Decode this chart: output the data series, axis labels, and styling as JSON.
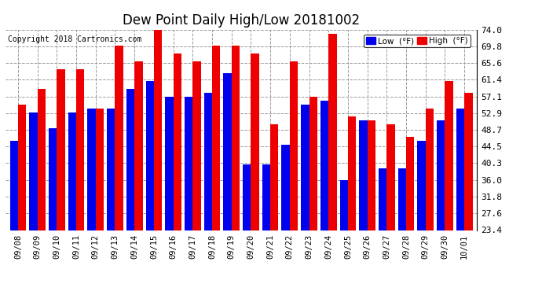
{
  "title": "Dew Point Daily High/Low 20181002",
  "copyright": "Copyright 2018 Cartronics.com",
  "labels": [
    "09/08",
    "09/09",
    "09/10",
    "09/11",
    "09/12",
    "09/13",
    "09/14",
    "09/15",
    "09/16",
    "09/17",
    "09/18",
    "09/19",
    "09/20",
    "09/21",
    "09/22",
    "09/23",
    "09/24",
    "09/25",
    "09/26",
    "09/27",
    "09/28",
    "09/29",
    "09/30",
    "10/01"
  ],
  "low": [
    46,
    53,
    49,
    53,
    54,
    54,
    59,
    61,
    57,
    57,
    58,
    63,
    40,
    40,
    45,
    55,
    56,
    36,
    51,
    39,
    39,
    46,
    51,
    54
  ],
  "high": [
    55,
    59,
    64,
    64,
    54,
    70,
    66,
    75,
    68,
    66,
    70,
    70,
    68,
    50,
    66,
    57,
    73,
    52,
    51,
    50,
    47,
    54,
    61,
    58
  ],
  "y_ticks": [
    23.4,
    27.6,
    31.8,
    36.0,
    40.3,
    44.5,
    48.7,
    52.9,
    57.1,
    61.4,
    65.6,
    69.8,
    74.0
  ],
  "y_min": 23.4,
  "y_max": 74.0,
  "bar_width": 0.42,
  "low_color": "#0000ee",
  "high_color": "#ee0000",
  "bg_color": "#ffffff",
  "grid_color": "#999999",
  "title_fontsize": 12,
  "legend_label_low": "Low  (°F)",
  "legend_label_high": "High  (°F)"
}
